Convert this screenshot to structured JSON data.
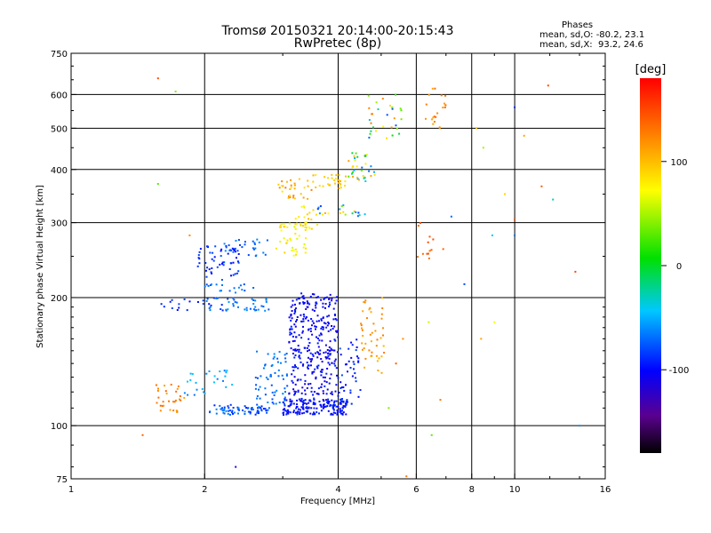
{
  "header": {
    "title_line1": "Tromsø 20150321 20:14:00-20:15:43",
    "title_line2": "RwPretec (8p)"
  },
  "stats": {
    "heading": "Phases",
    "o_line": "mean, sd,O: -80.2, 23.1",
    "x_line": "mean, sd,X:  93.2, 24.6"
  },
  "colorbar": {
    "label": "[deg]",
    "range": [
      -180,
      180
    ],
    "ticks": [
      {
        "value": 100,
        "label": "100"
      },
      {
        "value": 0,
        "label": "0"
      },
      {
        "value": -100,
        "label": "-100"
      }
    ]
  },
  "chart_data": {
    "type": "scatter",
    "title": "Tromsø 20150321 20:14:00-20:15:43",
    "subtitle": "RwPretec (8p)",
    "xlabel": "Frequency [MHz]",
    "ylabel": "Stationary phase Virtual Height [km]",
    "xscale": "log",
    "yscale": "log",
    "xlim": [
      1,
      16
    ],
    "ylim": [
      75,
      750
    ],
    "xticks": [
      1,
      2,
      4,
      6,
      8,
      10,
      16
    ],
    "xgrid": [
      2,
      4,
      6,
      8,
      10
    ],
    "yticks": [
      75,
      100,
      200,
      300,
      400,
      500,
      600,
      750
    ],
    "ygrid": [
      100,
      200,
      300,
      400,
      500,
      600
    ],
    "grid": true,
    "color_by": "phase",
    "color_unit": "deg",
    "clusters": [
      {
        "x": [
          2.05,
          2.8
        ],
        "y": [
          106,
          112
        ],
        "phase": [
          -95,
          -60
        ],
        "n": 70
      },
      {
        "x": [
          3.0,
          4.2
        ],
        "y": [
          106,
          116
        ],
        "phase": [
          -110,
          -85
        ],
        "n": 180
      },
      {
        "x": [
          3.1,
          4.0
        ],
        "y": [
          118,
          205
        ],
        "phase": [
          -115,
          -90
        ],
        "n": 320
      },
      {
        "x": [
          2.6,
          3.1
        ],
        "y": [
          112,
          150
        ],
        "phase": [
          -80,
          -60
        ],
        "n": 60
      },
      {
        "x": [
          4.0,
          4.5
        ],
        "y": [
          112,
          160
        ],
        "phase": [
          -105,
          -80
        ],
        "n": 40
      },
      {
        "x": [
          1.55,
          1.8
        ],
        "y": [
          107,
          125
        ],
        "phase": [
          110,
          140
        ],
        "n": 30
      },
      {
        "x": [
          1.8,
          2.4
        ],
        "y": [
          118,
          135
        ],
        "phase": [
          -70,
          -40
        ],
        "n": 25
      },
      {
        "x": [
          2.0,
          2.8
        ],
        "y": [
          186,
          200
        ],
        "phase": [
          -80,
          -55
        ],
        "n": 40
      },
      {
        "x": [
          2.0,
          2.6
        ],
        "y": [
          205,
          215
        ],
        "phase": [
          -80,
          -60
        ],
        "n": 18
      },
      {
        "x": [
          1.55,
          2.2
        ],
        "y": [
          185,
          200
        ],
        "phase": [
          -100,
          -80
        ],
        "n": 20
      },
      {
        "x": [
          1.9,
          2.4
        ],
        "y": [
          220,
          265
        ],
        "phase": [
          -100,
          -75
        ],
        "n": 60
      },
      {
        "x": [
          2.2,
          2.8
        ],
        "y": [
          250,
          275
        ],
        "phase": [
          -85,
          -60
        ],
        "n": 25
      },
      {
        "x": [
          2.9,
          3.4
        ],
        "y": [
          250,
          300
        ],
        "phase": [
          60,
          95
        ],
        "n": 45
      },
      {
        "x": [
          3.2,
          3.6
        ],
        "y": [
          290,
          330
        ],
        "phase": [
          70,
          105
        ],
        "n": 20
      },
      {
        "x": [
          2.9,
          3.5
        ],
        "y": [
          340,
          380
        ],
        "phase": [
          80,
          130
        ],
        "n": 30
      },
      {
        "x": [
          3.5,
          4.2
        ],
        "y": [
          360,
          390
        ],
        "phase": [
          80,
          110
        ],
        "n": 30
      },
      {
        "x": [
          3.6,
          4.6
        ],
        "y": [
          310,
          330
        ],
        "phase": [
          -95,
          110
        ],
        "n": 20
      },
      {
        "x": [
          4.2,
          4.9
        ],
        "y": [
          375,
          440
        ],
        "phase": [
          -80,
          120
        ],
        "n": 35
      },
      {
        "x": [
          4.5,
          5.1
        ],
        "y": [
          130,
          200
        ],
        "phase": [
          100,
          130
        ],
        "n": 45
      },
      {
        "x": [
          4.6,
          5.6
        ],
        "y": [
          470,
          600
        ],
        "phase": [
          -90,
          130
        ],
        "n": 30
      },
      {
        "x": [
          6.2,
          7.0
        ],
        "y": [
          500,
          620
        ],
        "phase": [
          110,
          140
        ],
        "n": 20
      },
      {
        "x": [
          6.0,
          6.6
        ],
        "y": [
          240,
          300
        ],
        "phase": [
          130,
          150
        ],
        "n": 12
      }
    ],
    "sparse_points": [
      {
        "x": 1.45,
        "y": 95,
        "phase": 140
      },
      {
        "x": 1.57,
        "y": 655,
        "phase": 150
      },
      {
        "x": 1.57,
        "y": 370,
        "phase": 30
      },
      {
        "x": 1.72,
        "y": 610,
        "phase": 40
      },
      {
        "x": 1.85,
        "y": 280,
        "phase": 120
      },
      {
        "x": 2.35,
        "y": 80,
        "phase": -120
      },
      {
        "x": 5.7,
        "y": 76,
        "phase": 130
      },
      {
        "x": 6.5,
        "y": 95,
        "phase": 30
      },
      {
        "x": 6.9,
        "y": 260,
        "phase": 140
      },
      {
        "x": 7.2,
        "y": 310,
        "phase": -70
      },
      {
        "x": 8.2,
        "y": 500,
        "phase": 100
      },
      {
        "x": 8.5,
        "y": 450,
        "phase": 50
      },
      {
        "x": 8.9,
        "y": 280,
        "phase": -40
      },
      {
        "x": 8.4,
        "y": 160,
        "phase": 110
      },
      {
        "x": 9.5,
        "y": 350,
        "phase": 90
      },
      {
        "x": 10.0,
        "y": 280,
        "phase": -70
      },
      {
        "x": 10.0,
        "y": 305,
        "phase": 150
      },
      {
        "x": 10.0,
        "y": 560,
        "phase": -90
      },
      {
        "x": 10.5,
        "y": 480,
        "phase": 110
      },
      {
        "x": 11.5,
        "y": 365,
        "phase": 140
      },
      {
        "x": 11.9,
        "y": 630,
        "phase": 150
      },
      {
        "x": 12.2,
        "y": 340,
        "phase": -30
      },
      {
        "x": 13.7,
        "y": 230,
        "phase": 150
      },
      {
        "x": 14.0,
        "y": 100,
        "phase": -60
      },
      {
        "x": 5.4,
        "y": 140,
        "phase": 140
      },
      {
        "x": 5.6,
        "y": 160,
        "phase": 120
      },
      {
        "x": 5.2,
        "y": 110,
        "phase": 40
      },
      {
        "x": 6.8,
        "y": 115,
        "phase": 130
      },
      {
        "x": 6.4,
        "y": 175,
        "phase": 60
      },
      {
        "x": 7.7,
        "y": 215,
        "phase": -80
      },
      {
        "x": 9.0,
        "y": 175,
        "phase": 70
      }
    ]
  }
}
